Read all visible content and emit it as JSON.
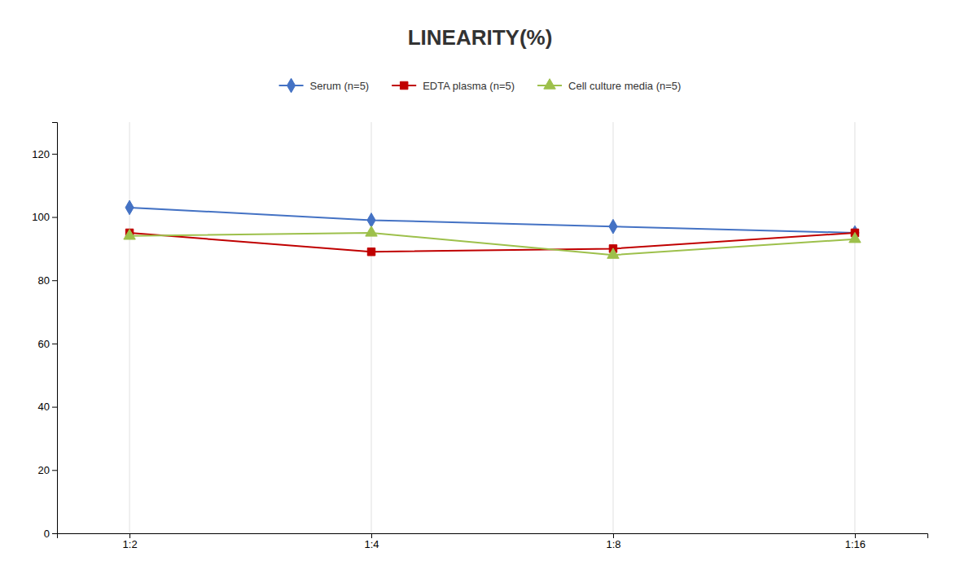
{
  "chart_data": {
    "type": "line",
    "title": "LINEARITY(%)",
    "categories": [
      "1:2",
      "1:4",
      "1:8",
      "1:16"
    ],
    "series": [
      {
        "name": "Serum (n=5)",
        "color": "#4472C4",
        "marker": "diamond",
        "values": [
          103,
          99,
          97,
          95
        ]
      },
      {
        "name": "EDTA plasma (n=5)",
        "color": "#C00000",
        "marker": "square",
        "values": [
          95,
          89,
          90,
          95
        ]
      },
      {
        "name": "Cell culture media (n=5)",
        "color": "#9DC04B",
        "marker": "triangle",
        "values": [
          94,
          95,
          88,
          93
        ]
      }
    ],
    "ylim": [
      0,
      130
    ],
    "yticks": [
      0,
      20,
      40,
      60,
      80,
      100,
      120
    ],
    "grid": true,
    "legend": "top"
  }
}
